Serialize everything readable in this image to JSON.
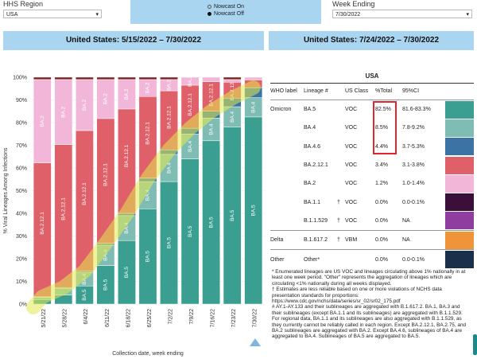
{
  "controls": {
    "region_label": "HHS Region",
    "region_value": "USA",
    "nowcast_on": "Nowcast On",
    "nowcast_off": "Nowcast Off",
    "week_label": "Week Ending",
    "week_value": "7/30/2022"
  },
  "banners": {
    "left": "United States: 5/15/2022 – 7/30/2022",
    "right": "United States: 7/24/2022 – 7/30/2022"
  },
  "colors": {
    "BA.5": "#3a9e90",
    "BA.4": "#7fbcb4",
    "BA.4.6": "#3b73a5",
    "BA.2.12.1": "#e0606a",
    "BA.2": "#f2b7d8",
    "BA.1.1": "#3a0f3a",
    "B.1.1.529": "#8f3d9e",
    "B.1.617.2": "#f0943a",
    "Other": "#1a2f4a",
    "Other_small": "#7a1a1a",
    "highlight": "#e4e94f",
    "annotation_box": "#e0262c"
  },
  "chart_data": {
    "type": "bar",
    "stacked": true,
    "title": "",
    "xlabel": "Collection date, week ending",
    "ylabel": "% Viral Lineages Among Infections",
    "ylim": [
      0,
      100
    ],
    "yticks": [
      "0%",
      "10%",
      "20%",
      "30%",
      "40%",
      "50%",
      "60%",
      "70%",
      "80%",
      "90%",
      "100%"
    ],
    "categories": [
      "5/21/22",
      "5/28/22",
      "6/4/22",
      "6/11/22",
      "6/18/22",
      "6/25/22",
      "7/2/22",
      "7/9/22",
      "7/16/22",
      "7/23/22",
      "7/30/22"
    ],
    "series": [
      {
        "name": "BA.5",
        "values": [
          2,
          4,
          8,
          17,
          28,
          42,
          54,
          64,
          72,
          78,
          82.5
        ],
        "label": "BA.5",
        "labelFrom": 2
      },
      {
        "name": "BA.4",
        "values": [
          1,
          3,
          6,
          9,
          11,
          12,
          12,
          11,
          10,
          9,
          8.5
        ],
        "label": "BA.4",
        "labelFrom": 2
      },
      {
        "name": "BA.4.6",
        "values": [
          0.2,
          0.3,
          0.5,
          0.8,
          1,
          1.5,
          2,
          2.5,
          3,
          3.8,
          4.4
        ],
        "label": "",
        "labelFrom": 99
      },
      {
        "name": "BA.2.12.1",
        "values": [
          59,
          63,
          62,
          55,
          46,
          36,
          26,
          19,
          13,
          7,
          3.4
        ],
        "label": "BA.2.12.1",
        "labelFrom": 0
      },
      {
        "name": "BA.2",
        "values": [
          36.8,
          28.7,
          22.5,
          17.2,
          13,
          7.5,
          5,
          3.5,
          2,
          1.2,
          1.2
        ],
        "label": "BA.2",
        "labelFrom": 0
      },
      {
        "name": "Other",
        "values": [
          1,
          1,
          1,
          1,
          1,
          1,
          1,
          0,
          0,
          1,
          0
        ],
        "label": "",
        "labelFrom": 99
      }
    ]
  },
  "table": {
    "region": "USA",
    "headers": [
      "WHO label",
      "Lineage #",
      "US Class",
      "%Total",
      "95%CI"
    ],
    "rows": [
      {
        "who": "Omicron",
        "lineage": "BA.5",
        "dag": "",
        "cls": "VOC",
        "pct": "82.5%",
        "ci": "81.6-83.3%",
        "color": "BA.5",
        "boxed": true,
        "sep": false
      },
      {
        "who": "",
        "lineage": "BA.4",
        "dag": "",
        "cls": "VOC",
        "pct": "8.5%",
        "ci": "7.8-9.2%",
        "color": "BA.4",
        "boxed": true,
        "sep": false
      },
      {
        "who": "",
        "lineage": "BA.4.6",
        "dag": "",
        "cls": "VOC",
        "pct": "4.4%",
        "ci": "3.7-5.3%",
        "color": "BA.4.6",
        "boxed": true,
        "sep": false
      },
      {
        "who": "",
        "lineage": "BA.2.12.1",
        "dag": "",
        "cls": "VOC",
        "pct": "3.4%",
        "ci": "3.1-3.8%",
        "color": "BA.2.12.1",
        "boxed": false,
        "sep": false
      },
      {
        "who": "",
        "lineage": "BA.2",
        "dag": "",
        "cls": "VOC",
        "pct": "1.2%",
        "ci": "1.0-1.4%",
        "color": "BA.2",
        "boxed": false,
        "sep": false
      },
      {
        "who": "",
        "lineage": "BA.1.1",
        "dag": "†",
        "cls": "VOC",
        "pct": "0.0%",
        "ci": "0.0-0.1%",
        "color": "BA.1.1",
        "boxed": false,
        "sep": false
      },
      {
        "who": "",
        "lineage": "B.1.1.529",
        "dag": "†",
        "cls": "VOC",
        "pct": "0.0%",
        "ci": "NA",
        "color": "B.1.1.529",
        "boxed": false,
        "sep": true
      },
      {
        "who": "Delta",
        "lineage": "B.1.617.2",
        "dag": "†",
        "cls": "VBM",
        "pct": "0.0%",
        "ci": "NA",
        "color": "B.1.617.2",
        "boxed": false,
        "sep": true
      },
      {
        "who": "Other",
        "lineage": "Other*",
        "dag": "",
        "cls": "",
        "pct": "0.0%",
        "ci": "0.0-0.1%",
        "color": "Other",
        "boxed": false,
        "sep": false
      }
    ]
  },
  "footnotes": {
    "star": "*      Enumerated lineages are US VOC and lineages circulating above 1% nationally in at least one week period. \"Other\" represents the aggregation of lineages which are circulating <1% nationally during all weeks displayed.",
    "dagger": "†      Estimates are less reliable based on one or more violations of NCHS data presentation standards for proportions: https://www.cdc.gov/nchs/data/series/sr_02/sr02_175.pdf",
    "hash": "#      AY.1-AY.133 and their sublineages are aggregated with B.1.617.2. BA.1, BA.3 and their sublineages (except BA.1.1 and its sublineages) are aggregated with B.1.1.529. For regional data, BA.1.1 and its sublineages are also aggregated with B.1.1.529, as they currently cannot be reliably called in each region. Except BA.2.12.1, BA.2.75, and BA.2 sublineages are aggregated with BA.2. Except BA.4.6, sublineages of BA.4 are aggregated to BA.4. Sublineages of BA.5 are aggregated to BA.5."
  }
}
